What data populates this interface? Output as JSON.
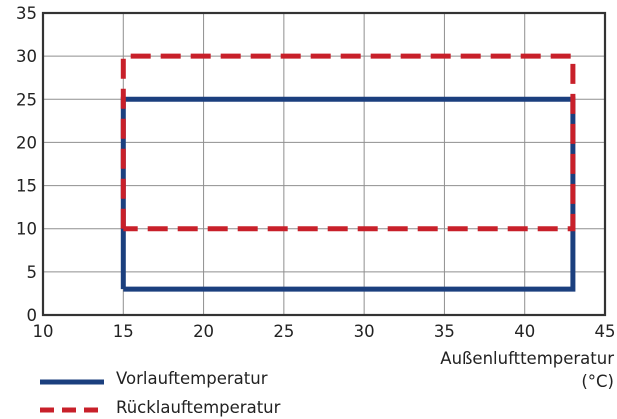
{
  "chart_data": {
    "type": "line",
    "xlabel": "Außenlufttemperatur",
    "xlabel_unit": "(°C)",
    "xlim": [
      10,
      45
    ],
    "ylim": [
      0,
      35
    ],
    "x_ticks": [
      10,
      15,
      20,
      25,
      30,
      35,
      40,
      45
    ],
    "y_ticks": [
      0,
      5,
      10,
      15,
      20,
      25,
      30,
      35
    ],
    "grid": true,
    "legend_position": "bottom-left",
    "series": [
      {
        "name": "Vorlauftemperatur",
        "color": "#1b3f7e",
        "style": "solid",
        "points": [
          [
            15,
            3
          ],
          [
            15,
            25
          ],
          [
            43,
            25
          ],
          [
            43,
            3
          ],
          [
            15,
            3
          ]
        ]
      },
      {
        "name": "Rücklauftemperatur",
        "color": "#c8202a",
        "style": "dashed",
        "points": [
          [
            15,
            10
          ],
          [
            15,
            30
          ],
          [
            43,
            30
          ],
          [
            43,
            10
          ],
          [
            15,
            10
          ]
        ]
      }
    ]
  }
}
